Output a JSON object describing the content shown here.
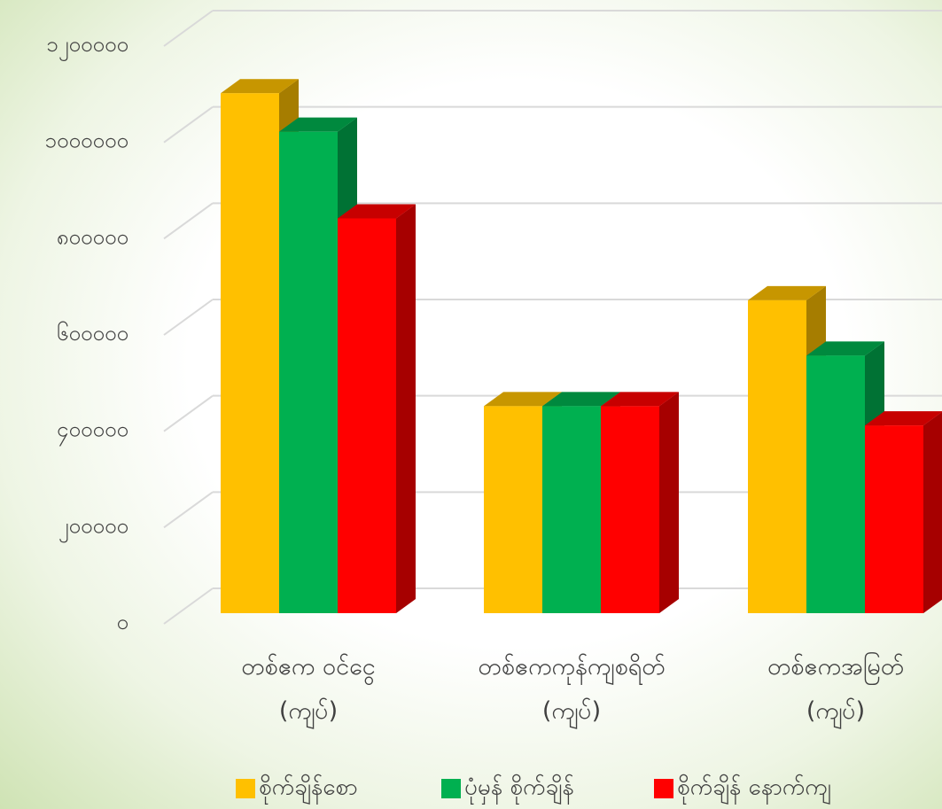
{
  "chart_data": {
    "type": "bar3d",
    "categories": [
      "တစ်ဧက ဝင်ငွေ\n(ကျပ်)",
      "တစ်ဧကကုန်ကျစရိတ်\n(ကျပ်)",
      "တစ်ဧကအမြတ်\n(ကျပ်)"
    ],
    "series": [
      {
        "name": "စိုက်ချိန်စော",
        "color": "#ffc000",
        "values": [
          1080000,
          430000,
          650000
        ]
      },
      {
        "name": "ပုံမှန် စိုက်ချိန်",
        "color": "#00b050",
        "values": [
          1000000,
          430000,
          535000
        ]
      },
      {
        "name": "စိုက်ချိန် နောက်ကျ",
        "color": "#ff0000",
        "values": [
          820000,
          430000,
          390000
        ]
      }
    ],
    "ylim": [
      0,
      1200000
    ],
    "yticks": [
      {
        "value": 0,
        "label": "၀"
      },
      {
        "value": 200000,
        "label": "၂၀၀၀၀၀"
      },
      {
        "value": 400000,
        "label": "၄၀၀၀၀၀"
      },
      {
        "value": 600000,
        "label": "၆၀၀၀၀၀"
      },
      {
        "value": 800000,
        "label": "၈၀၀၀၀၀"
      },
      {
        "value": 1000000,
        "label": "၁၀၀၀၀၀၀"
      },
      {
        "value": 1200000,
        "label": "၁၂၀၀၀၀၀"
      }
    ],
    "grid": true,
    "legend": "bottom"
  }
}
